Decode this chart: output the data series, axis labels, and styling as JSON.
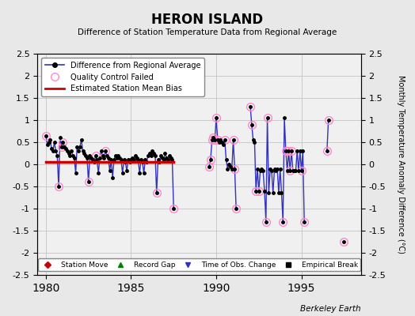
{
  "title": "HERON ISLAND",
  "subtitle": "Difference of Station Temperature Data from Regional Average",
  "ylabel": "Monthly Temperature Anomaly Difference (°C)",
  "xlim": [
    1979.5,
    1998.5
  ],
  "ylim": [
    -2.5,
    2.5
  ],
  "bias_value": 0.05,
  "bias_start": 1980.0,
  "bias_end": 1987.5,
  "background_color": "#e8e8e8",
  "plot_bg_color": "#f0f0f0",
  "data_line_color": "#3333bb",
  "data_marker_color": "#000000",
  "qc_circle_color": "#ff88cc",
  "bias_line_color": "#cc0000",
  "xticks": [
    1980,
    1985,
    1990,
    1995
  ],
  "yticks": [
    -2.5,
    -2.0,
    -1.5,
    -1.0,
    -0.5,
    0.0,
    0.5,
    1.0,
    1.5,
    2.0,
    2.5
  ],
  "main_times": [
    1980.0,
    1980.083,
    1980.167,
    1980.25,
    1980.333,
    1980.417,
    1980.5,
    1980.583,
    1980.667,
    1980.75,
    1980.833,
    1980.917,
    1981.0,
    1981.083,
    1981.167,
    1981.25,
    1981.333,
    1981.417,
    1981.5,
    1981.583,
    1981.667,
    1981.75,
    1981.833,
    1981.917,
    1982.0,
    1982.083,
    1982.167,
    1982.25,
    1982.333,
    1982.417,
    1982.5,
    1982.583,
    1982.667,
    1982.75,
    1982.833,
    1982.917,
    1983.0,
    1983.083,
    1983.167,
    1983.25,
    1983.333,
    1983.417,
    1983.5,
    1983.583,
    1983.667,
    1983.75,
    1983.833,
    1983.917,
    1984.0,
    1984.083,
    1984.167,
    1984.25,
    1984.333,
    1984.417,
    1984.5,
    1984.583,
    1984.667,
    1984.75,
    1984.833,
    1984.917,
    1985.0,
    1985.083,
    1985.167,
    1985.25,
    1985.333,
    1985.417,
    1985.5,
    1985.583,
    1985.667,
    1985.75,
    1985.833,
    1985.917,
    1986.0,
    1986.083,
    1986.167,
    1986.25,
    1986.333,
    1986.417,
    1986.5,
    1986.583,
    1986.667,
    1986.75,
    1986.833,
    1986.917,
    1987.0,
    1987.083,
    1987.167,
    1987.25,
    1987.333,
    1987.417,
    1987.5,
    1989.583,
    1989.667,
    1989.75,
    1989.833,
    1989.917,
    1990.0,
    1990.083,
    1990.167,
    1990.25,
    1990.333,
    1990.417,
    1990.5,
    1990.583,
    1990.667,
    1990.75,
    1990.833,
    1990.917,
    1991.0,
    1991.083,
    1991.167,
    1992.0,
    1992.083,
    1992.167,
    1992.25,
    1992.333,
    1992.417,
    1992.5,
    1992.583,
    1992.667,
    1992.75,
    1992.833,
    1992.917,
    1993.0,
    1993.083,
    1993.167,
    1993.25,
    1993.333,
    1993.417,
    1993.5,
    1993.583,
    1993.667,
    1993.75,
    1993.833,
    1993.917,
    1994.0,
    1994.083,
    1994.167,
    1994.25,
    1994.333,
    1994.417,
    1994.5,
    1994.583,
    1994.667,
    1994.75,
    1994.833,
    1994.917,
    1995.0,
    1995.083,
    1995.167,
    1996.5,
    1996.583,
    1997.5
  ],
  "main_values": [
    0.65,
    0.45,
    0.5,
    0.55,
    0.35,
    0.3,
    0.5,
    0.3,
    0.2,
    -0.5,
    0.6,
    0.4,
    0.5,
    0.4,
    0.35,
    0.3,
    0.25,
    0.2,
    0.3,
    0.2,
    0.15,
    -0.2,
    0.4,
    0.3,
    0.4,
    0.55,
    0.3,
    0.25,
    0.2,
    0.15,
    -0.4,
    0.2,
    0.15,
    0.1,
    0.05,
    0.2,
    0.1,
    -0.2,
    0.15,
    0.3,
    0.2,
    0.15,
    0.3,
    0.2,
    0.15,
    -0.15,
    0.1,
    -0.3,
    0.1,
    0.2,
    0.15,
    0.2,
    0.15,
    0.1,
    -0.2,
    0.1,
    0.05,
    -0.15,
    0.1,
    0.05,
    0.1,
    0.15,
    0.1,
    0.2,
    0.15,
    0.1,
    -0.2,
    0.1,
    0.05,
    -0.2,
    0.1,
    0.05,
    0.2,
    0.25,
    0.2,
    0.3,
    0.25,
    0.2,
    -0.65,
    0.1,
    0.05,
    0.2,
    0.15,
    0.1,
    0.25,
    0.15,
    0.1,
    0.2,
    0.15,
    0.1,
    -1.0,
    -0.05,
    0.1,
    0.55,
    0.6,
    0.55,
    1.05,
    0.55,
    0.5,
    0.55,
    0.5,
    0.45,
    0.55,
    0.1,
    -0.1,
    0.0,
    -0.05,
    -0.1,
    0.55,
    -0.1,
    -1.0,
    1.3,
    0.9,
    0.55,
    0.5,
    -0.6,
    -0.1,
    -0.6,
    -0.15,
    -0.1,
    -0.15,
    -0.6,
    -1.3,
    1.05,
    -0.65,
    -0.1,
    -0.15,
    -0.65,
    -0.1,
    -0.15,
    -0.1,
    -0.65,
    -0.1,
    -0.65,
    -1.3,
    1.05,
    0.3,
    -0.15,
    0.3,
    -0.15,
    0.3,
    -0.15,
    -0.15,
    -0.15,
    0.3,
    -0.15,
    0.3,
    -0.15,
    0.3,
    -1.3,
    0.3,
    1.0,
    -1.75
  ],
  "qc_times": [
    1980.0,
    1980.75,
    1980.917,
    1981.0,
    1982.5,
    1982.917,
    1983.5,
    1986.5,
    1987.5,
    1989.583,
    1989.667,
    1989.75,
    1989.833,
    1989.917,
    1990.0,
    1990.083,
    1990.5,
    1991.0,
    1991.083,
    1991.167,
    1992.0,
    1992.083,
    1992.333,
    1992.5,
    1992.917,
    1993.0,
    1993.917,
    1994.083,
    1994.25,
    1994.333,
    1994.417,
    1995.0,
    1995.167,
    1996.5,
    1996.583,
    1997.5
  ],
  "qc_values": [
    0.65,
    -0.5,
    0.4,
    0.5,
    -0.4,
    0.2,
    0.3,
    -0.65,
    -1.0,
    -0.05,
    0.1,
    0.55,
    0.6,
    0.55,
    1.05,
    0.55,
    0.55,
    0.55,
    -0.1,
    -1.0,
    1.3,
    0.9,
    -0.6,
    -0.6,
    -1.3,
    1.05,
    -1.3,
    0.3,
    0.3,
    -0.15,
    0.3,
    -0.15,
    -1.3,
    0.3,
    1.0,
    -1.75
  ]
}
